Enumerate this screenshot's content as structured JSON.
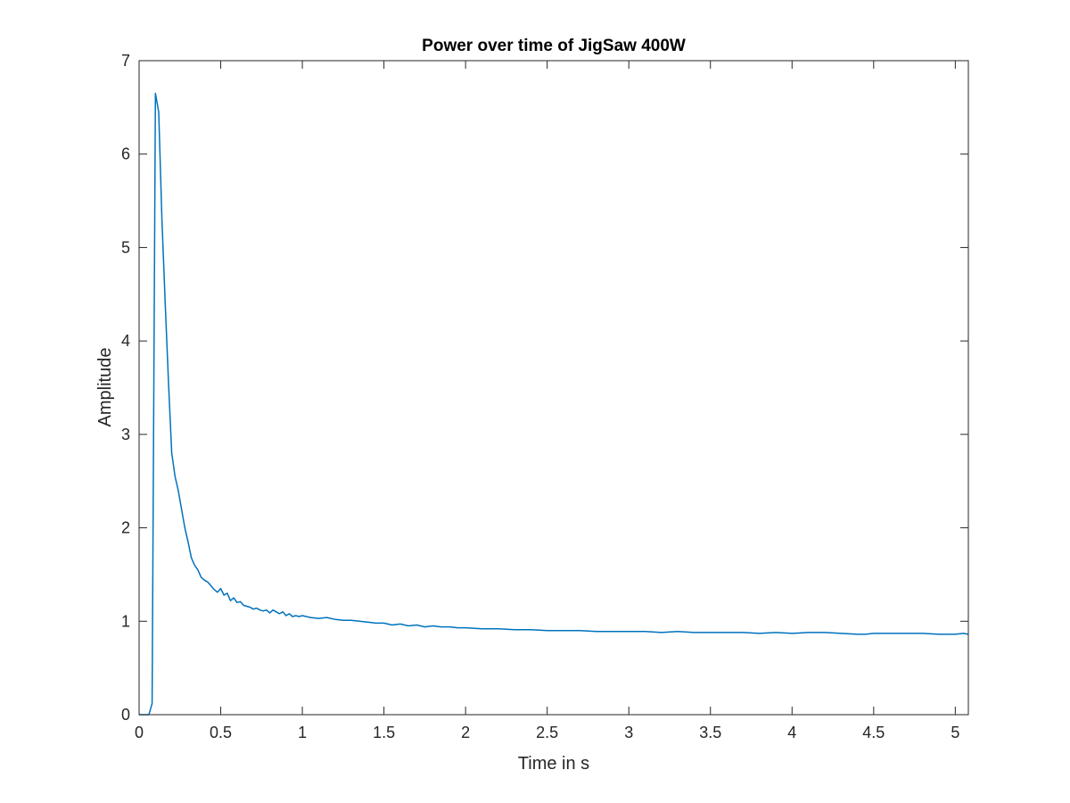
{
  "chart_data": {
    "type": "line",
    "title": "Power over time of JigSaw 400W",
    "xlabel": "Time in s",
    "ylabel": "Amplitude",
    "xlim": [
      0,
      5.08
    ],
    "ylim": [
      0,
      7
    ],
    "grid": false,
    "legend": "none",
    "line_color": "#0072bd",
    "axis_color": "#262626",
    "x_ticks": [
      0,
      0.5,
      1,
      1.5,
      2,
      2.5,
      3,
      3.5,
      4,
      4.5,
      5
    ],
    "x_tick_labels": [
      "0",
      "0.5",
      "1",
      "1.5",
      "2",
      "2.5",
      "3",
      "3.5",
      "4",
      "4.5",
      "5"
    ],
    "y_ticks": [
      0,
      1,
      2,
      3,
      4,
      5,
      6,
      7
    ],
    "y_tick_labels": [
      "0",
      "1",
      "2",
      "3",
      "4",
      "5",
      "6",
      "7"
    ],
    "series": [
      {
        "x": [
          0,
          0.02,
          0.04,
          0.06,
          0.08,
          0.1,
          0.12,
          0.14,
          0.16,
          0.18,
          0.2,
          0.22,
          0.24,
          0.26,
          0.28,
          0.3,
          0.32,
          0.34,
          0.36,
          0.38,
          0.4,
          0.42,
          0.44,
          0.46,
          0.48,
          0.5,
          0.52,
          0.54,
          0.56,
          0.58,
          0.6,
          0.62,
          0.64,
          0.66,
          0.68,
          0.7,
          0.72,
          0.74,
          0.76,
          0.78,
          0.8,
          0.82,
          0.84,
          0.86,
          0.88,
          0.9,
          0.92,
          0.94,
          0.96,
          0.98,
          1.0,
          1.05,
          1.1,
          1.15,
          1.2,
          1.25,
          1.3,
          1.35,
          1.4,
          1.45,
          1.5,
          1.55,
          1.6,
          1.65,
          1.7,
          1.75,
          1.8,
          1.85,
          1.9,
          1.95,
          2.0,
          2.1,
          2.2,
          2.3,
          2.4,
          2.5,
          2.6,
          2.7,
          2.8,
          2.9,
          3.0,
          3.1,
          3.2,
          3.3,
          3.4,
          3.5,
          3.6,
          3.7,
          3.8,
          3.9,
          4.0,
          4.1,
          4.2,
          4.3,
          4.4,
          4.45,
          4.5,
          4.6,
          4.7,
          4.8,
          4.9,
          5.0,
          5.05,
          5.08
        ],
        "values": [
          0.0,
          0.0,
          0.0,
          0.0,
          0.12,
          6.65,
          6.45,
          5.3,
          4.4,
          3.55,
          2.8,
          2.55,
          2.4,
          2.2,
          2.0,
          1.85,
          1.68,
          1.6,
          1.55,
          1.47,
          1.44,
          1.42,
          1.38,
          1.34,
          1.31,
          1.35,
          1.28,
          1.3,
          1.22,
          1.25,
          1.2,
          1.21,
          1.17,
          1.16,
          1.15,
          1.13,
          1.14,
          1.12,
          1.11,
          1.12,
          1.09,
          1.12,
          1.1,
          1.08,
          1.1,
          1.06,
          1.08,
          1.05,
          1.06,
          1.05,
          1.06,
          1.04,
          1.03,
          1.04,
          1.02,
          1.01,
          1.01,
          1.0,
          0.99,
          0.98,
          0.98,
          0.96,
          0.97,
          0.95,
          0.96,
          0.94,
          0.95,
          0.94,
          0.94,
          0.93,
          0.93,
          0.92,
          0.92,
          0.91,
          0.91,
          0.9,
          0.9,
          0.9,
          0.89,
          0.89,
          0.89,
          0.89,
          0.88,
          0.89,
          0.88,
          0.88,
          0.88,
          0.88,
          0.87,
          0.88,
          0.87,
          0.88,
          0.88,
          0.87,
          0.86,
          0.86,
          0.87,
          0.87,
          0.87,
          0.87,
          0.86,
          0.86,
          0.87,
          0.86
        ]
      }
    ]
  }
}
